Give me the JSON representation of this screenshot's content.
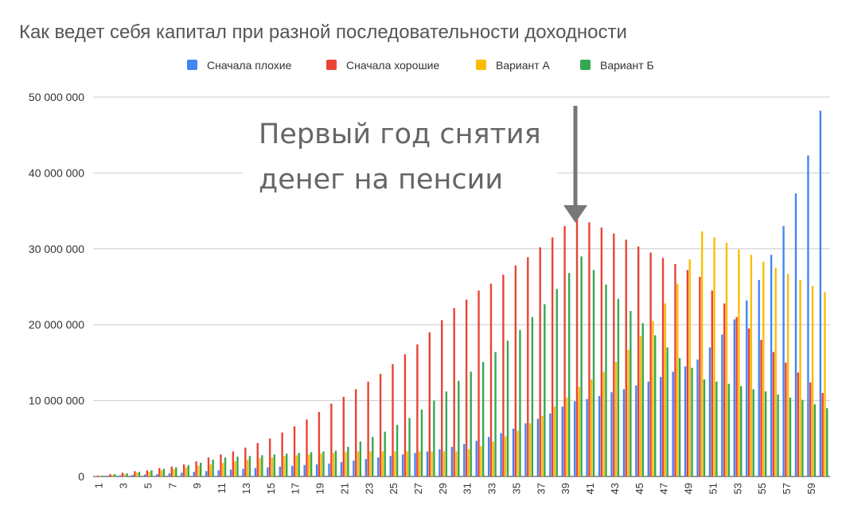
{
  "chart_data": {
    "type": "bar",
    "title": "Как ведет себя капитал при разной последовательности доходности",
    "annotation": [
      "Первый год снятия",
      "денег на пенсии"
    ],
    "categories": [
      "1",
      null,
      "3",
      null,
      "5",
      null,
      "7",
      null,
      "9",
      null,
      "11",
      null,
      "13",
      null,
      "15",
      null,
      "17",
      null,
      "19",
      null,
      "21",
      null,
      "23",
      null,
      "25",
      null,
      "27",
      null,
      "29",
      null,
      "31",
      null,
      "33",
      null,
      "35",
      null,
      "37",
      null,
      "39",
      null,
      "41",
      null,
      "43",
      null,
      "45",
      null,
      "47",
      null,
      "49",
      null,
      "51",
      null,
      "53",
      null,
      "55",
      null,
      "57",
      null,
      "59",
      null
    ],
    "series": [
      {
        "name": "Сначала плохие",
        "color": "#4285f4",
        "values": [
          50000.0,
          100000.0,
          150000.0,
          200000.0,
          250000.0,
          300000.0,
          400000.0,
          500000.0,
          600000.0,
          700000.0,
          800000.0,
          900000.0,
          1000000.0,
          1100000.0,
          1200000.0,
          1300000.0,
          1400000.0,
          1500000.0,
          1600000.0,
          1700000.0,
          1900000.0,
          2100000.0,
          2300000.0,
          2500000.0,
          2700000.0,
          2900000.0,
          3100000.0,
          3300000.0,
          3600000.0,
          3900000.0,
          4300000.0,
          4700000.0,
          5200000.0,
          5700000.0,
          6300000.0,
          7000000.0,
          7600000.0,
          8300000.0,
          9200000.0,
          9900000.0,
          10200000.0,
          10600000.0,
          11100000.0,
          11500000.0,
          12000000.0,
          12500000.0,
          13100000.0,
          13800000.0,
          14500000.0,
          15400000.0,
          17000000.0,
          18700000.0,
          20700000.0,
          23200000.0,
          25900000.0,
          29200000.0,
          33000000.0,
          37300000.0,
          42300000.0,
          48200000.0
        ]
      },
      {
        "name": "Сначала хорошие",
        "color": "#ea4335",
        "values": [
          100000.0,
          300000.0,
          500000.0,
          700000.0,
          800000.0,
          1100000.0,
          1300000.0,
          1600000.0,
          2000000.0,
          2500000.0,
          2900000.0,
          3300000.0,
          3800000.0,
          4400000.0,
          5000000.0,
          5800000.0,
          6600000.0,
          7500000.0,
          8500000.0,
          9600000.0,
          10500000.0,
          11500000.0,
          12500000.0,
          13500000.0,
          14800000.0,
          16100000.0,
          17400000.0,
          19000000.0,
          20600000.0,
          22200000.0,
          23300000.0,
          24500000.0,
          25400000.0,
          26600000.0,
          27800000.0,
          28900000.0,
          30200000.0,
          31500000.0,
          33000000.0,
          34000000.0,
          33500000.0,
          32800000.0,
          32000000.0,
          31200000.0,
          30300000.0,
          29500000.0,
          28800000.0,
          28000000.0,
          27200000.0,
          26300000.0,
          24500000.0,
          22800000.0,
          21000000.0,
          19500000.0,
          18000000.0,
          16400000.0,
          15000000.0,
          13700000.0,
          12400000.0,
          11000000.0
        ]
      },
      {
        "name": "Вариант А",
        "color": "#fbbc04",
        "values": [
          100000.0,
          200000.0,
          300000.0,
          500000.0,
          600000.0,
          800000.0,
          1000000.0,
          1200000.0,
          1400000.0,
          1600000.0,
          1800000.0,
          2000000.0,
          2200000.0,
          2400000.0,
          2500000.0,
          2700000.0,
          2800000.0,
          2900000.0,
          3000000.0,
          3100000.0,
          3200000.0,
          3300000.0,
          3300000.0,
          3300000.0,
          3300000.0,
          3300000.0,
          3300000.0,
          3300000.0,
          3300000.0,
          3300000.0,
          3600000.0,
          4000000.0,
          4600000.0,
          5300000.0,
          6000000.0,
          7000000.0,
          8000000.0,
          9200000.0,
          10400000.0,
          11800000.0,
          12800000.0,
          13800000.0,
          15100000.0,
          16700000.0,
          18500000.0,
          20500000.0,
          22800000.0,
          25400000.0,
          28600000.0,
          32300000.0,
          31500000.0,
          30800000.0,
          29900000.0,
          29200000.0,
          28300000.0,
          27500000.0,
          26700000.0,
          25900000.0,
          25100000.0,
          24300000.0
        ]
      },
      {
        "name": "Вариант Б",
        "color": "#34a853",
        "values": [
          100000.0,
          300000.0,
          400000.0,
          600000.0,
          800000.0,
          1000000.0,
          1200000.0,
          1500000.0,
          1800000.0,
          2200000.0,
          2500000.0,
          2600000.0,
          2700000.0,
          2800000.0,
          2900000.0,
          3000000.0,
          3100000.0,
          3200000.0,
          3300000.0,
          3400000.0,
          3900000.0,
          4600000.0,
          5200000.0,
          5900000.0,
          6800000.0,
          7700000.0,
          8800000.0,
          10000000.0,
          11200000.0,
          12600000.0,
          13800000.0,
          15100000.0,
          16400000.0,
          17900000.0,
          19300000.0,
          21000000.0,
          22700000.0,
          24700000.0,
          26800000.0,
          29000000.0,
          27200000.0,
          25300000.0,
          23400000.0,
          21800000.0,
          20200000.0,
          18600000.0,
          17000000.0,
          15600000.0,
          14300000.0,
          12800000.0,
          12500000.0,
          12200000.0,
          11900000.0,
          11500000.0,
          11200000.0,
          10800000.0,
          10400000.0,
          10100000.0,
          9500000.0,
          9000000.0
        ]
      }
    ],
    "ylim": [
      0,
      50000000
    ],
    "yticks": [
      0,
      {
        "value": 10000000,
        "label": "10 000 000"
      },
      {
        "value": 20000000,
        "label": "20 000 000"
      },
      {
        "value": 30000000,
        "label": "30 000 000"
      },
      {
        "value": 40000000,
        "label": "40 000 000"
      },
      {
        "value": 50000000,
        "label": "50 000 000"
      }
    ],
    "grid": true
  }
}
